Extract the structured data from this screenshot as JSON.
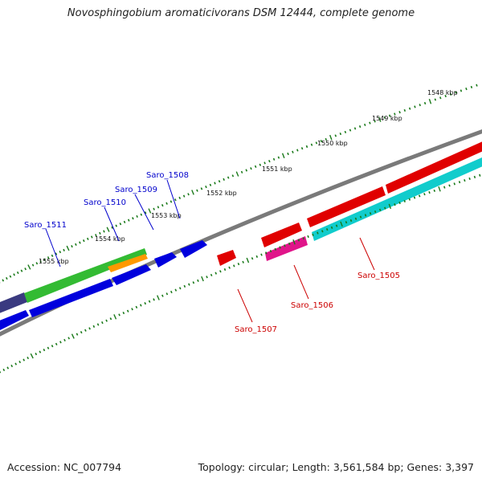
{
  "title": "Novosphingobium aromaticivorans DSM 12444, complete genome",
  "footer": {
    "accession": "Accession: NC_007794",
    "summary": "Topology: circular; Length: 3,561,584 bp; Genes: 3,397"
  },
  "outer_tick_labels": [
    "1548 kbp",
    "1549 kbp",
    "1550 kbp",
    "1551 kbp",
    "1552 kbp",
    "1553 kbp",
    "1554 kbp",
    "1555 kbp"
  ],
  "genes": [
    {
      "name": "Saro_1505",
      "strand": "minus",
      "color": "#e00000"
    },
    {
      "name": "Saro_1506",
      "strand": "minus",
      "color": "#e0158a"
    },
    {
      "name": "Saro_1507",
      "strand": "minus",
      "color": "#e00000"
    },
    {
      "name": "Saro_1508",
      "strand": "plus",
      "color": "#0000dd"
    },
    {
      "name": "Saro_1509",
      "strand": "plus",
      "color": "#0000dd"
    },
    {
      "name": "Saro_1510",
      "strand": "plus",
      "color": "#0000dd"
    },
    {
      "name": "Saro_1511",
      "strand": "plus",
      "color": "#0000dd"
    }
  ],
  "colors": {
    "backbone": "#7a7a7a",
    "tick": "#1a7a1a",
    "cds_plus": "#0000dd",
    "cds_minus": "#e00000",
    "gene_green": "#33bb33",
    "gene_orange": "#ff9900",
    "gene_cyan": "#11cccc",
    "gene_magenta": "#e0158a",
    "gene_darkblue": "#3a3a80"
  }
}
